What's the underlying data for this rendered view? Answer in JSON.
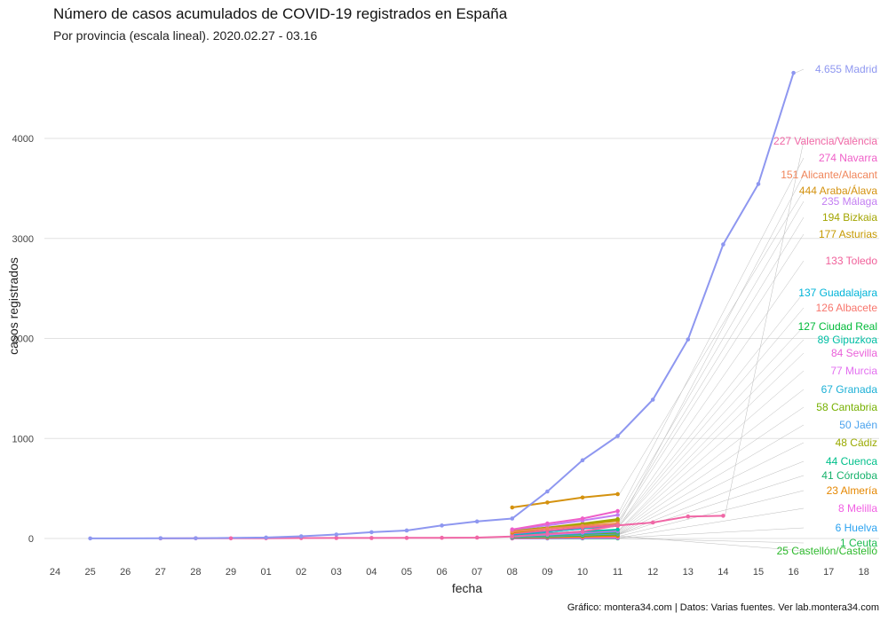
{
  "chart_data": {
    "type": "line",
    "title": "Número de casos acumulados de COVID-19 registrados en España",
    "subtitle": "Por provincia (escala lineal). 2020.02.27 - 03.16",
    "caption": "Gráfico: montera34.com | Datos: Varias fuentes. Ver lab.montera34.com",
    "xlabel": "fecha",
    "ylabel": "casos registrados",
    "x_ticks": [
      "24",
      "25",
      "26",
      "27",
      "28",
      "29",
      "01",
      "02",
      "03",
      "04",
      "05",
      "06",
      "07",
      "08",
      "09",
      "10",
      "11",
      "12",
      "13",
      "14",
      "15",
      "16",
      "17",
      "18"
    ],
    "y_ticks": [
      0,
      1000,
      2000,
      3000,
      4000
    ],
    "ylim": [
      -150,
      4800
    ],
    "grid": true,
    "legend": "none",
    "series": [
      {
        "name": "Madrid",
        "label": "4.655 Madrid",
        "color": "#8e97f0",
        "start": 1,
        "values": [
          1,
          null,
          3,
          3,
          null,
          10,
          22,
          40,
          63,
          80,
          130,
          170,
          200,
          470,
          782,
          1024,
          1388,
          1990,
          2940,
          3544,
          4655
        ]
      },
      {
        "name": "Araba/Álava",
        "label": "444 Araba/Álava",
        "color": "#d4920f",
        "start": 13,
        "values": [
          310,
          360,
          410,
          444
        ]
      },
      {
        "name": "Valencia/València",
        "label": "227 Valencia/València",
        "color": "#f067a6",
        "start": 3,
        "values": [
          1,
          2,
          2,
          3,
          4,
          5,
          5,
          6,
          7,
          9,
          20,
          45,
          70,
          130,
          160,
          220,
          227
        ]
      },
      {
        "name": "Navarra",
        "label": "274 Navarra",
        "color": "#ef5fc8",
        "start": 13,
        "values": [
          90,
          150,
          200,
          274
        ]
      },
      {
        "name": "Alicante/Alacant",
        "label": "151 Alicante/Alacant",
        "color": "#f0855a",
        "start": 13,
        "values": [
          70,
          100,
          125,
          151
        ]
      },
      {
        "name": "Málaga",
        "label": "235 Málaga",
        "color": "#c37df2",
        "start": 13,
        "values": [
          90,
          130,
          180,
          235
        ]
      },
      {
        "name": "Bizkaia",
        "label": "194 Bizkaia",
        "color": "#a3a500",
        "start": 13,
        "values": [
          80,
          110,
          150,
          194
        ]
      },
      {
        "name": "Asturias",
        "label": "177 Asturias",
        "color": "#c59900",
        "start": 13,
        "values": [
          60,
          100,
          140,
          177
        ]
      },
      {
        "name": "Toledo",
        "label": "133 Toledo",
        "color": "#f0609a",
        "start": 13,
        "values": [
          50,
          80,
          110,
          133
        ]
      },
      {
        "name": "Guadalajara",
        "label": "137 Guadalajara",
        "color": "#00b4d8",
        "start": 13,
        "values": [
          40,
          70,
          100,
          137
        ]
      },
      {
        "name": "Albacete",
        "label": "126 Albacete",
        "color": "#f8766d",
        "start": 13,
        "values": [
          40,
          70,
          100,
          126
        ]
      },
      {
        "name": "Ciudad Real",
        "label": "127 Ciudad Real",
        "color": "#00ba38",
        "start": 13,
        "values": [
          40,
          70,
          100,
          127
        ]
      },
      {
        "name": "Gipuzkoa",
        "label": "89 Gipuzkoa",
        "color": "#00bfa5",
        "start": 13,
        "values": [
          30,
          50,
          70,
          89
        ]
      },
      {
        "name": "Sevilla",
        "label": "84 Sevilla",
        "color": "#ea60d9",
        "start": 13,
        "values": [
          30,
          50,
          65,
          84
        ]
      },
      {
        "name": "Murcia",
        "label": "77 Murcia",
        "color": "#e36ff0",
        "start": 13,
        "values": [
          25,
          40,
          60,
          77
        ]
      },
      {
        "name": "Granada",
        "label": "67 Granada",
        "color": "#1cb0d6",
        "start": 13,
        "values": [
          20,
          35,
          50,
          67
        ]
      },
      {
        "name": "Cantabria",
        "label": "58 Cantabria",
        "color": "#76b000",
        "start": 13,
        "values": [
          20,
          30,
          45,
          58
        ]
      },
      {
        "name": "Jaén",
        "label": "50 Jaén",
        "color": "#4ba3ee",
        "start": 13,
        "values": [
          15,
          25,
          38,
          50
        ]
      },
      {
        "name": "Cádiz",
        "label": "48 Cádiz",
        "color": "#9aaa00",
        "start": 13,
        "values": [
          15,
          25,
          35,
          48
        ]
      },
      {
        "name": "Cuenca",
        "label": "44 Cuenca",
        "color": "#00c08b",
        "start": 13,
        "values": [
          12,
          22,
          32,
          44
        ]
      },
      {
        "name": "Córdoba",
        "label": "41 Córdoba",
        "color": "#17b26c",
        "start": 13,
        "values": [
          12,
          20,
          30,
          41
        ]
      },
      {
        "name": "Almería",
        "label": "23 Almería",
        "color": "#e58700",
        "start": 13,
        "values": [
          8,
          12,
          18,
          23
        ]
      },
      {
        "name": "Melilla",
        "label": "8 Melilla",
        "color": "#f15ee3",
        "start": 13,
        "values": [
          2,
          4,
          6,
          8
        ]
      },
      {
        "name": "Huelva",
        "label": "6 Huelva",
        "color": "#2aa2f0",
        "start": 13,
        "values": [
          1,
          2,
          4,
          6
        ]
      },
      {
        "name": "Ceuta",
        "label": "1 Ceuta",
        "color": "#1bbb4e",
        "start": 13,
        "values": [
          1,
          1,
          1,
          1
        ]
      },
      {
        "name": "Castellón/Castelló",
        "label": "25 Castellón/Castelló",
        "color": "#2db92c",
        "start": 13,
        "values": [
          8,
          12,
          18,
          25
        ]
      }
    ]
  }
}
